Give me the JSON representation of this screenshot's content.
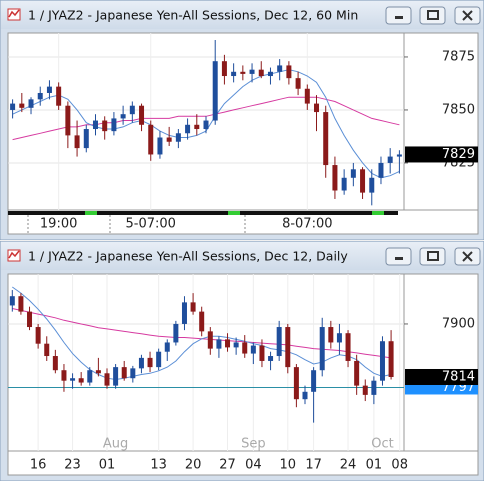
{
  "chart_data": [
    {
      "type": "candlestick",
      "title": "1 / JYAZ2 - Japanese Yen-All Sessions, Dec 12, 60 Min",
      "ylim": [
        7802.8,
        7886.3
      ],
      "yticks": [
        7825,
        7850,
        7875
      ],
      "last": 7829,
      "categories": [
        null,
        null,
        null,
        null,
        null,
        "19:00",
        null,
        null,
        null,
        null,
        null,
        null,
        null,
        null,
        null,
        "5-07:00",
        null,
        null,
        null,
        null,
        null,
        null,
        null,
        null,
        null,
        null,
        null,
        null,
        null,
        null,
        null,
        null,
        "8-07:00",
        null,
        null,
        null,
        null,
        null,
        null,
        null,
        null,
        null,
        null
      ],
      "candles": [
        [
          7850,
          7855,
          7846,
          7853
        ],
        [
          7853,
          7858,
          7849,
          7851
        ],
        [
          7851,
          7856,
          7848,
          7855
        ],
        [
          7855,
          7861,
          7852,
          7858
        ],
        [
          7858,
          7864,
          7855,
          7861
        ],
        [
          7861,
          7863,
          7850,
          7852
        ],
        [
          7852,
          7854,
          7832,
          7838
        ],
        [
          7838,
          7845,
          7828,
          7832
        ],
        [
          7832,
          7843,
          7830,
          7841
        ],
        [
          7841,
          7848,
          7838,
          7845
        ],
        [
          7845,
          7847,
          7836,
          7840
        ],
        [
          7840,
          7849,
          7838,
          7846
        ],
        [
          7846,
          7852,
          7843,
          7848
        ],
        [
          7848,
          7854,
          7844,
          7852
        ],
        [
          7852,
          7853,
          7840,
          7843
        ],
        [
          7843,
          7845,
          7826,
          7829
        ],
        [
          7829,
          7840,
          7827,
          7837
        ],
        [
          7837,
          7842,
          7833,
          7835
        ],
        [
          7835,
          7841,
          7832,
          7839
        ],
        [
          7839,
          7846,
          7836,
          7843
        ],
        [
          7843,
          7848,
          7838,
          7841
        ],
        [
          7841,
          7847,
          7839,
          7845
        ],
        [
          7845,
          7883,
          7843,
          7873
        ],
        [
          7873,
          7876,
          7862,
          7866
        ],
        [
          7866,
          7872,
          7863,
          7868
        ],
        [
          7868,
          7871,
          7864,
          7867
        ],
        [
          7867,
          7872,
          7863,
          7869
        ],
        [
          7869,
          7873,
          7865,
          7866
        ],
        [
          7866,
          7870,
          7862,
          7868
        ],
        [
          7868,
          7874,
          7864,
          7871
        ],
        [
          7871,
          7873,
          7862,
          7865
        ],
        [
          7865,
          7868,
          7857,
          7860
        ],
        [
          7860,
          7862,
          7850,
          7853
        ],
        [
          7853,
          7857,
          7840,
          7849
        ],
        [
          7849,
          7852,
          7818,
          7824
        ],
        [
          7824,
          7828,
          7808,
          7812
        ],
        [
          7812,
          7822,
          7810,
          7818
        ],
        [
          7818,
          7825,
          7814,
          7822
        ],
        [
          7822,
          7823,
          7808,
          7811
        ],
        [
          7811,
          7822,
          7805,
          7818
        ],
        [
          7818,
          7828,
          7815,
          7825
        ],
        [
          7825,
          7832,
          7820,
          7828
        ],
        [
          7828,
          7831,
          7820,
          7829
        ]
      ],
      "overlays": [
        {
          "color": "#d63aa0",
          "values": [
            7836,
            7837,
            7838,
            7839,
            7840,
            7841,
            7842,
            7842,
            7843,
            7843,
            7844,
            7844,
            7845,
            7845,
            7846,
            7846,
            7846,
            7846,
            7847,
            7847,
            7847,
            7847,
            7848,
            7849,
            7850,
            7851,
            7852,
            7853,
            7854,
            7855,
            7856,
            7856,
            7856,
            7856,
            7855,
            7854,
            7852,
            7850,
            7848,
            7846,
            7845,
            7844,
            7843
          ]
        },
        {
          "color": "#5b8fd6",
          "values": [
            7848,
            7850,
            7852,
            7854,
            7856,
            7857,
            7855,
            7850,
            7844,
            7842,
            7841,
            7841,
            7842,
            7844,
            7845,
            7843,
            7840,
            7838,
            7837,
            7837,
            7838,
            7840,
            7847,
            7853,
            7857,
            7861,
            7864,
            7866,
            7867,
            7868,
            7869,
            7868,
            7866,
            7863,
            7856,
            7846,
            7838,
            7831,
            7825,
            7820,
            7818,
            7819,
            7821
          ]
        }
      ]
    },
    {
      "type": "candlestick",
      "title": "1 / JYAZ2 - Japanese Yen-All Sessions, Dec 12, Daily",
      "ylim": [
        7694,
        7981
      ],
      "yticks": [
        7900
      ],
      "last": 7814,
      "hline": 7797,
      "hline_color": "#1e90ff",
      "categories": [
        null,
        null,
        null,
        "16",
        null,
        null,
        null,
        "23",
        null,
        null,
        null,
        "01",
        null,
        null,
        null,
        null,
        null,
        "13",
        null,
        null,
        null,
        "20",
        null,
        null,
        null,
        "27",
        null,
        null,
        "04",
        null,
        null,
        null,
        "10",
        null,
        null,
        "17",
        null,
        null,
        null,
        "24",
        null,
        null,
        "01",
        null,
        null,
        "08"
      ],
      "months": [
        null,
        null,
        null,
        null,
        null,
        null,
        null,
        null,
        null,
        null,
        null,
        null,
        "Aug",
        null,
        null,
        null,
        null,
        null,
        null,
        null,
        null,
        null,
        null,
        null,
        null,
        null,
        null,
        null,
        "Sep",
        null,
        null,
        null,
        null,
        null,
        null,
        null,
        null,
        null,
        null,
        null,
        null,
        null,
        null,
        "Oct",
        null,
        null
      ],
      "candles": [
        [
          7930,
          7955,
          7920,
          7945
        ],
        [
          7945,
          7950,
          7915,
          7920
        ],
        [
          7920,
          7928,
          7890,
          7895
        ],
        [
          7895,
          7900,
          7860,
          7868
        ],
        [
          7868,
          7880,
          7840,
          7848
        ],
        [
          7848,
          7858,
          7820,
          7825
        ],
        [
          7825,
          7835,
          7790,
          7808
        ],
        [
          7808,
          7820,
          7795,
          7812
        ],
        [
          7812,
          7822,
          7800,
          7805
        ],
        [
          7805,
          7830,
          7800,
          7825
        ],
        [
          7825,
          7845,
          7815,
          7820
        ],
        [
          7820,
          7828,
          7795,
          7800
        ],
        [
          7800,
          7835,
          7795,
          7830
        ],
        [
          7830,
          7840,
          7808,
          7812
        ],
        [
          7812,
          7832,
          7805,
          7828
        ],
        [
          7828,
          7850,
          7820,
          7845
        ],
        [
          7845,
          7855,
          7822,
          7830
        ],
        [
          7830,
          7860,
          7825,
          7855
        ],
        [
          7855,
          7875,
          7840,
          7870
        ],
        [
          7870,
          7905,
          7865,
          7900
        ],
        [
          7900,
          7945,
          7890,
          7935
        ],
        [
          7935,
          7950,
          7915,
          7920
        ],
        [
          7920,
          7928,
          7880,
          7888
        ],
        [
          7888,
          7895,
          7850,
          7860
        ],
        [
          7860,
          7880,
          7845,
          7875
        ],
        [
          7875,
          7885,
          7855,
          7862
        ],
        [
          7862,
          7878,
          7850,
          7870
        ],
        [
          7870,
          7882,
          7845,
          7852
        ],
        [
          7852,
          7870,
          7835,
          7865
        ],
        [
          7865,
          7875,
          7830,
          7840
        ],
        [
          7840,
          7855,
          7825,
          7848
        ],
        [
          7848,
          7905,
          7840,
          7895
        ],
        [
          7895,
          7900,
          7820,
          7830
        ],
        [
          7830,
          7835,
          7765,
          7778
        ],
        [
          7778,
          7800,
          7770,
          7790
        ],
        [
          7790,
          7830,
          7740,
          7825
        ],
        [
          7825,
          7910,
          7815,
          7895
        ],
        [
          7895,
          7905,
          7860,
          7870
        ],
        [
          7870,
          7900,
          7850,
          7885
        ],
        [
          7885,
          7890,
          7830,
          7840
        ],
        [
          7840,
          7850,
          7785,
          7800
        ],
        [
          7800,
          7810,
          7775,
          7785
        ],
        [
          7785,
          7815,
          7770,
          7808
        ],
        [
          7808,
          7880,
          7800,
          7872
        ],
        [
          7872,
          7890,
          7810,
          7814
        ],
        null
      ],
      "overlays": [
        {
          "color": "#d63aa0",
          "values": [
            7925,
            7922,
            7919,
            7916,
            7913,
            7910,
            7906,
            7903,
            7900,
            7897,
            7894,
            7892,
            7890,
            7888,
            7886,
            7884,
            7882,
            7880,
            7879,
            7878,
            7878,
            7877,
            7876,
            7875,
            7874,
            7873,
            7872,
            7871,
            7870,
            7869,
            7868,
            7867,
            7866,
            7864,
            7862,
            7860,
            7859,
            7858,
            7857,
            7855,
            7853,
            7851,
            7849,
            7847,
            7845,
            null
          ]
        },
        {
          "color": "#5b8fd6",
          "values": [
            7960,
            7950,
            7938,
            7924,
            7908,
            7890,
            7870,
            7852,
            7838,
            7826,
            7818,
            7812,
            7810,
            7812,
            7815,
            7818,
            7820,
            7824,
            7830,
            7840,
            7855,
            7868,
            7876,
            7880,
            7880,
            7878,
            7875,
            7872,
            7868,
            7865,
            7860,
            7858,
            7855,
            7850,
            7842,
            7835,
            7838,
            7845,
            7850,
            7848,
            7842,
            7830,
            7820,
            7815,
            7818,
            null
          ]
        }
      ]
    }
  ]
}
